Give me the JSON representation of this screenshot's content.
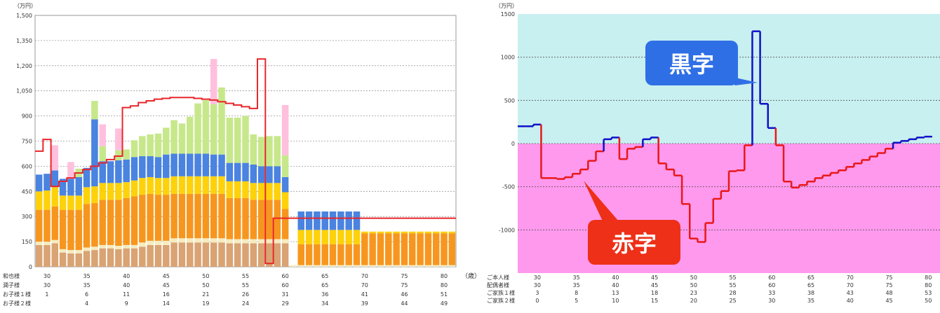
{
  "chart_data": [
    {
      "type": "bar",
      "title": "",
      "ylabel": "（万円）",
      "xlabel": "（歳）",
      "ylim": [
        0,
        1500
      ],
      "yticks": [
        0,
        150,
        300,
        450,
        600,
        750,
        900,
        1050,
        1200,
        1350,
        1500
      ],
      "yticklabels": [
        "0",
        "150",
        "300",
        "450",
        "600",
        "750",
        "900",
        "1,050",
        "1,200",
        "1,350",
        "1,500"
      ],
      "grid": true,
      "xticks": [
        30,
        35,
        40,
        45,
        50,
        55,
        60,
        65,
        70,
        75,
        80
      ],
      "age_rows": [
        {
          "label": "和也様",
          "values": [
            "30",
            "35",
            "40",
            "45",
            "50",
            "55",
            "60",
            "65",
            "70",
            "75",
            "80"
          ]
        },
        {
          "label": "潤子様",
          "values": [
            "30",
            "35",
            "40",
            "45",
            "50",
            "55",
            "60",
            "65",
            "70",
            "75",
            "80"
          ]
        },
        {
          "label": "お子様１様",
          "values": [
            "1",
            "6",
            "11",
            "16",
            "21",
            "26",
            "31",
            "36",
            "41",
            "46",
            "51"
          ]
        },
        {
          "label": "お子様２様",
          "values": [
            "",
            "4",
            "9",
            "14",
            "19",
            "24",
            "29",
            "34",
            "39",
            "44",
            "49"
          ]
        }
      ],
      "x": [
        29,
        30,
        31,
        32,
        33,
        34,
        35,
        36,
        37,
        38,
        39,
        40,
        41,
        42,
        43,
        44,
        45,
        46,
        47,
        48,
        49,
        50,
        51,
        52,
        53,
        54,
        55,
        56,
        57,
        58,
        59,
        60,
        61,
        62,
        63,
        64,
        65,
        66,
        67,
        68,
        69,
        70,
        71,
        72,
        73,
        74,
        75,
        76,
        77,
        78,
        79,
        80,
        81
      ],
      "series": [
        {
          "color": "#d9a373",
          "values": [
            130,
            130,
            140,
            85,
            80,
            80,
            95,
            100,
            110,
            110,
            105,
            110,
            110,
            120,
            130,
            130,
            130,
            145,
            145,
            145,
            145,
            145,
            145,
            145,
            140,
            140,
            140,
            140,
            140,
            140,
            140,
            140,
            0,
            0,
            0,
            0,
            0,
            0,
            0,
            0,
            0,
            0,
            0,
            0,
            0,
            0,
            0,
            0,
            0,
            0,
            0,
            0,
            0
          ]
        },
        {
          "color": "#f5ecc0",
          "values": [
            20,
            20,
            20,
            20,
            20,
            20,
            20,
            20,
            20,
            20,
            20,
            20,
            20,
            25,
            25,
            25,
            25,
            25,
            25,
            25,
            25,
            25,
            25,
            25,
            25,
            25,
            25,
            25,
            25,
            25,
            25,
            25,
            10,
            10,
            10,
            10,
            10,
            10,
            10,
            10,
            10,
            10,
            10,
            10,
            10,
            10,
            10,
            10,
            10,
            10,
            10,
            10,
            10
          ]
        },
        {
          "color": "#f7961e",
          "values": [
            190,
            190,
            200,
            235,
            240,
            240,
            260,
            260,
            270,
            270,
            275,
            280,
            290,
            285,
            280,
            275,
            275,
            265,
            265,
            265,
            265,
            265,
            265,
            265,
            245,
            245,
            245,
            235,
            235,
            235,
            235,
            180,
            0,
            125,
            125,
            125,
            125,
            125,
            125,
            125,
            125,
            190,
            190,
            190,
            190,
            190,
            190,
            190,
            190,
            190,
            190,
            190,
            190
          ]
        },
        {
          "color": "#fdd20a",
          "values": [
            110,
            115,
            115,
            85,
            85,
            85,
            100,
            100,
            100,
            100,
            100,
            95,
            95,
            100,
            100,
            100,
            100,
            105,
            105,
            105,
            105,
            105,
            105,
            105,
            100,
            100,
            100,
            100,
            100,
            100,
            100,
            100,
            0,
            85,
            85,
            85,
            85,
            85,
            85,
            85,
            85,
            10,
            10,
            10,
            10,
            10,
            10,
            10,
            10,
            10,
            10,
            10,
            10
          ]
        },
        {
          "color": "#4a83e0",
          "values": [
            100,
            100,
            100,
            100,
            100,
            110,
            115,
            400,
            130,
            130,
            135,
            135,
            140,
            130,
            125,
            125,
            140,
            135,
            135,
            135,
            135,
            135,
            130,
            130,
            110,
            110,
            110,
            110,
            100,
            100,
            100,
            90,
            0,
            110,
            110,
            110,
            110,
            110,
            110,
            110,
            110,
            0,
            0,
            0,
            0,
            0,
            0,
            0,
            0,
            0,
            0,
            0,
            0
          ]
        },
        {
          "color": "#c7e88a",
          "values": [
            0,
            0,
            0,
            0,
            0,
            50,
            0,
            110,
            90,
            0,
            60,
            60,
            100,
            120,
            130,
            140,
            160,
            200,
            180,
            220,
            300,
            320,
            300,
            400,
            270,
            270,
            280,
            180,
            175,
            180,
            180,
            130,
            0,
            0,
            0,
            0,
            0,
            0,
            0,
            0,
            0,
            0,
            0,
            0,
            0,
            0,
            0,
            0,
            0,
            0,
            0,
            0,
            0
          ]
        },
        {
          "color": "#2db84d",
          "values": [
            0,
            0,
            0,
            0,
            0,
            0,
            0,
            0,
            0,
            0,
            0,
            0,
            0,
            0,
            0,
            0,
            0,
            0,
            0,
            0,
            0,
            0,
            0,
            0,
            0,
            0,
            0,
            0,
            0,
            0,
            0,
            0,
            0,
            0,
            0,
            0,
            0,
            0,
            0,
            0,
            0,
            0,
            0,
            0,
            0,
            0,
            0,
            0,
            0,
            0,
            0,
            0,
            0
          ]
        },
        {
          "color": "#ffc0dd",
          "values": [
            0,
            0,
            150,
            0,
            100,
            0,
            0,
            0,
            130,
            0,
            130,
            0,
            0,
            0,
            0,
            0,
            0,
            0,
            0,
            0,
            0,
            0,
            270,
            0,
            0,
            0,
            0,
            0,
            0,
            0,
            0,
            300,
            0,
            0,
            0,
            0,
            0,
            0,
            0,
            0,
            0,
            0,
            0,
            0,
            0,
            0,
            0,
            0,
            0,
            0,
            0,
            0,
            0
          ]
        }
      ],
      "line": {
        "color": "#e8262b",
        "values": [
          690,
          760,
          480,
          510,
          530,
          560,
          580,
          600,
          620,
          640,
          660,
          950,
          960,
          980,
          990,
          1000,
          1005,
          1010,
          1010,
          1010,
          1005,
          1000,
          995,
          985,
          975,
          965,
          955,
          945,
          1240,
          20,
          290,
          290,
          290,
          290,
          290,
          290,
          290,
          290,
          290,
          290,
          290,
          290,
          290,
          290,
          290,
          290,
          290,
          290,
          290,
          290,
          290,
          290,
          290
        ]
      }
    },
    {
      "type": "line",
      "title": "",
      "ylabel": "（万円）",
      "ylim": [
        -1500,
        1500
      ],
      "yticks": [
        -1000,
        -500,
        0,
        500,
        1000,
        1500
      ],
      "yticklabels": [
        "-1000",
        "-500",
        "0",
        "500",
        "1000",
        "1500"
      ],
      "grid": true,
      "xticks": [
        30,
        35,
        40,
        45,
        50,
        55,
        60,
        65,
        70,
        75,
        80
      ],
      "age_rows": [
        {
          "label": "ご本人様",
          "values": [
            "30",
            "35",
            "40",
            "45",
            "50",
            "55",
            "60",
            "65",
            "70",
            "75",
            "80"
          ]
        },
        {
          "label": "配偶者様",
          "values": [
            "30",
            "35",
            "40",
            "45",
            "50",
            "55",
            "60",
            "65",
            "70",
            "75",
            "80"
          ]
        },
        {
          "label": "ご家族１様",
          "values": [
            "3",
            "8",
            "13",
            "18",
            "23",
            "28",
            "33",
            "38",
            "43",
            "48",
            "53"
          ]
        },
        {
          "label": "ご家族２様",
          "values": [
            "0",
            "5",
            "10",
            "15",
            "20",
            "25",
            "30",
            "35",
            "40",
            "45",
            "50"
          ]
        }
      ],
      "x": [
        28,
        29,
        30,
        31,
        32,
        33,
        34,
        35,
        36,
        37,
        38,
        39,
        40,
        41,
        42,
        43,
        44,
        45,
        46,
        47,
        48,
        49,
        50,
        51,
        52,
        53,
        54,
        55,
        56,
        57,
        58,
        59,
        60,
        61,
        62,
        63,
        64,
        65,
        66,
        67,
        68,
        69,
        70,
        71,
        72,
        73,
        74,
        75,
        76,
        77,
        78,
        79,
        80
      ],
      "series": [
        {
          "values": [
            200,
            200,
            220,
            -400,
            -400,
            -410,
            -390,
            -350,
            -300,
            -200,
            -90,
            50,
            70,
            -180,
            -60,
            -40,
            50,
            70,
            -230,
            -300,
            -370,
            -700,
            -1100,
            -1140,
            -920,
            -640,
            -550,
            -320,
            -310,
            -20,
            1300,
            460,
            180,
            -20,
            -440,
            -510,
            -480,
            -440,
            -400,
            -370,
            -340,
            -310,
            -270,
            -230,
            -190,
            -150,
            -110,
            -60,
            10,
            30,
            50,
            70,
            80
          ]
        }
      ],
      "regions": [
        {
          "label": "黒字",
          "color": "#c8f0f0",
          "line_color": "#1010c8",
          "badge_color": "#2f6fe6"
        },
        {
          "label": "赤字",
          "color": "#ff99ee",
          "line_color": "#e81818",
          "badge_color": "#ee3018"
        }
      ]
    }
  ]
}
